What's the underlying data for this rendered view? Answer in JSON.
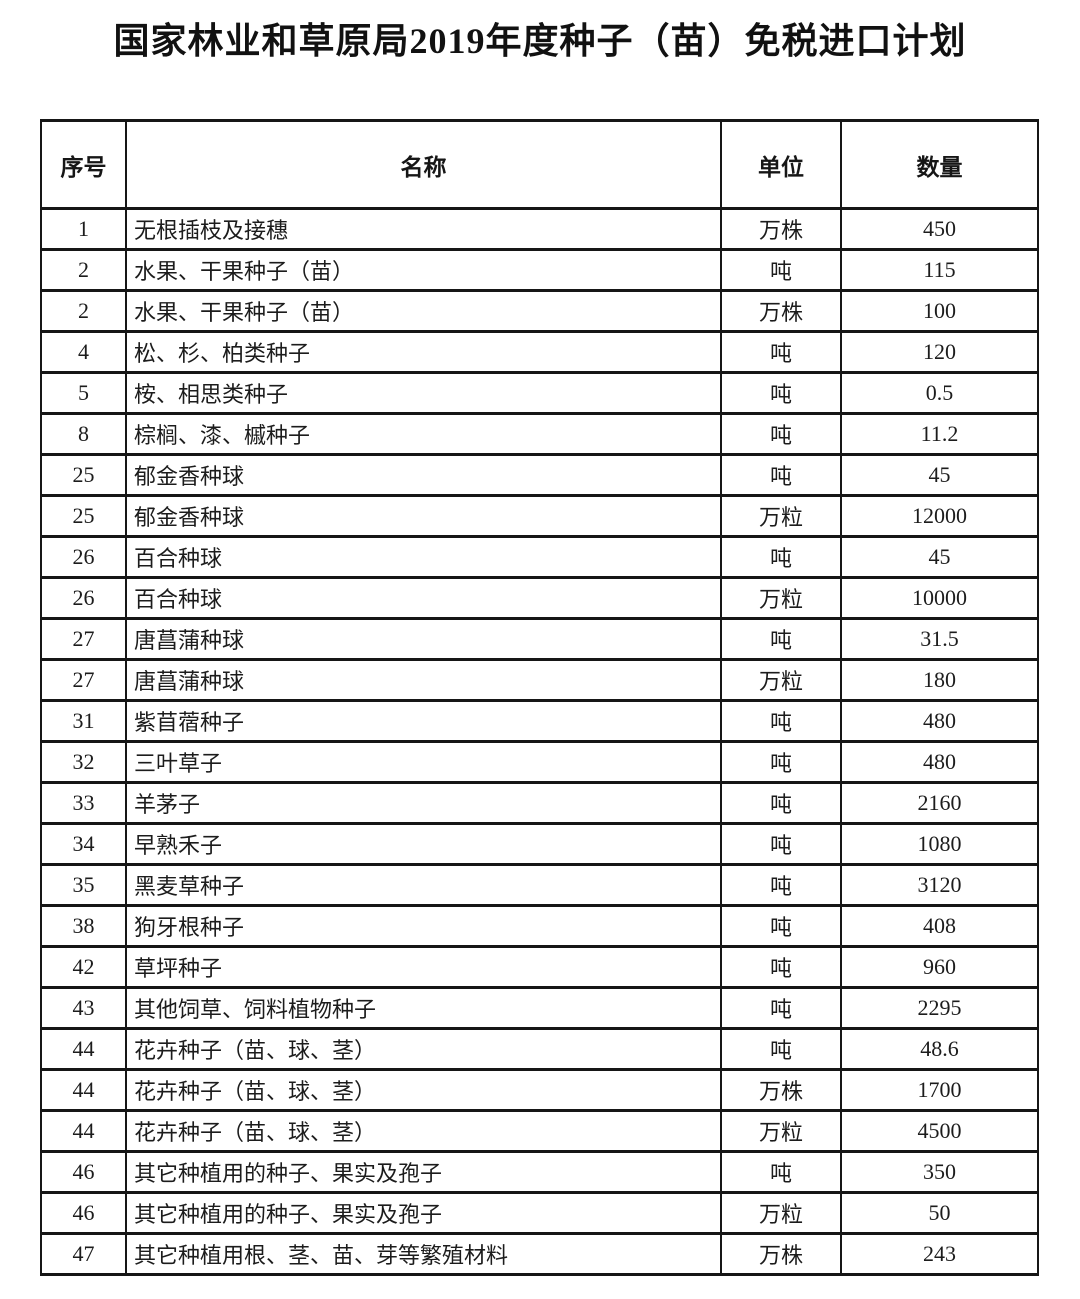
{
  "title": "国家林业和草原局2019年度种子（苗）免税进口计划",
  "table": {
    "headers": [
      "序号",
      "名称",
      "单位",
      "数量"
    ],
    "rows": [
      [
        "1",
        "无根插枝及接穗",
        "万株",
        "450"
      ],
      [
        "2",
        "水果、干果种子（苗）",
        "吨",
        "115"
      ],
      [
        "2",
        "水果、干果种子（苗）",
        "万株",
        "100"
      ],
      [
        "4",
        "松、杉、柏类种子",
        "吨",
        "120"
      ],
      [
        "5",
        "桉、相思类种子",
        "吨",
        "0.5"
      ],
      [
        "8",
        "棕榈、漆、槭种子",
        "吨",
        "11.2"
      ],
      [
        "25",
        "郁金香种球",
        "吨",
        "45"
      ],
      [
        "25",
        "郁金香种球",
        "万粒",
        "12000"
      ],
      [
        "26",
        "百合种球",
        "吨",
        "45"
      ],
      [
        "26",
        "百合种球",
        "万粒",
        "10000"
      ],
      [
        "27",
        "唐菖蒲种球",
        "吨",
        "31.5"
      ],
      [
        "27",
        "唐菖蒲种球",
        "万粒",
        "180"
      ],
      [
        "31",
        "紫苜蓿种子",
        "吨",
        "480"
      ],
      [
        "32",
        "三叶草子",
        "吨",
        "480"
      ],
      [
        "33",
        "羊茅子",
        "吨",
        "2160"
      ],
      [
        "34",
        "早熟禾子",
        "吨",
        "1080"
      ],
      [
        "35",
        "黑麦草种子",
        "吨",
        "3120"
      ],
      [
        "38",
        "狗牙根种子",
        "吨",
        "408"
      ],
      [
        "42",
        "草坪种子",
        "吨",
        "960"
      ],
      [
        "43",
        "其他饲草、饲料植物种子",
        "吨",
        "2295"
      ],
      [
        "44",
        "花卉种子（苗、球、茎）",
        "吨",
        "48.6"
      ],
      [
        "44",
        "花卉种子（苗、球、茎）",
        "万株",
        "1700"
      ],
      [
        "44",
        "花卉种子（苗、球、茎）",
        "万粒",
        "4500"
      ],
      [
        "46",
        "其它种植用的种子、果实及孢子",
        "吨",
        "350"
      ],
      [
        "46",
        "其它种植用的种子、果实及孢子",
        "万粒",
        "50"
      ],
      [
        "47",
        "其它种植用根、茎、苗、芽等繁殖材料",
        "万株",
        "243"
      ]
    ]
  }
}
